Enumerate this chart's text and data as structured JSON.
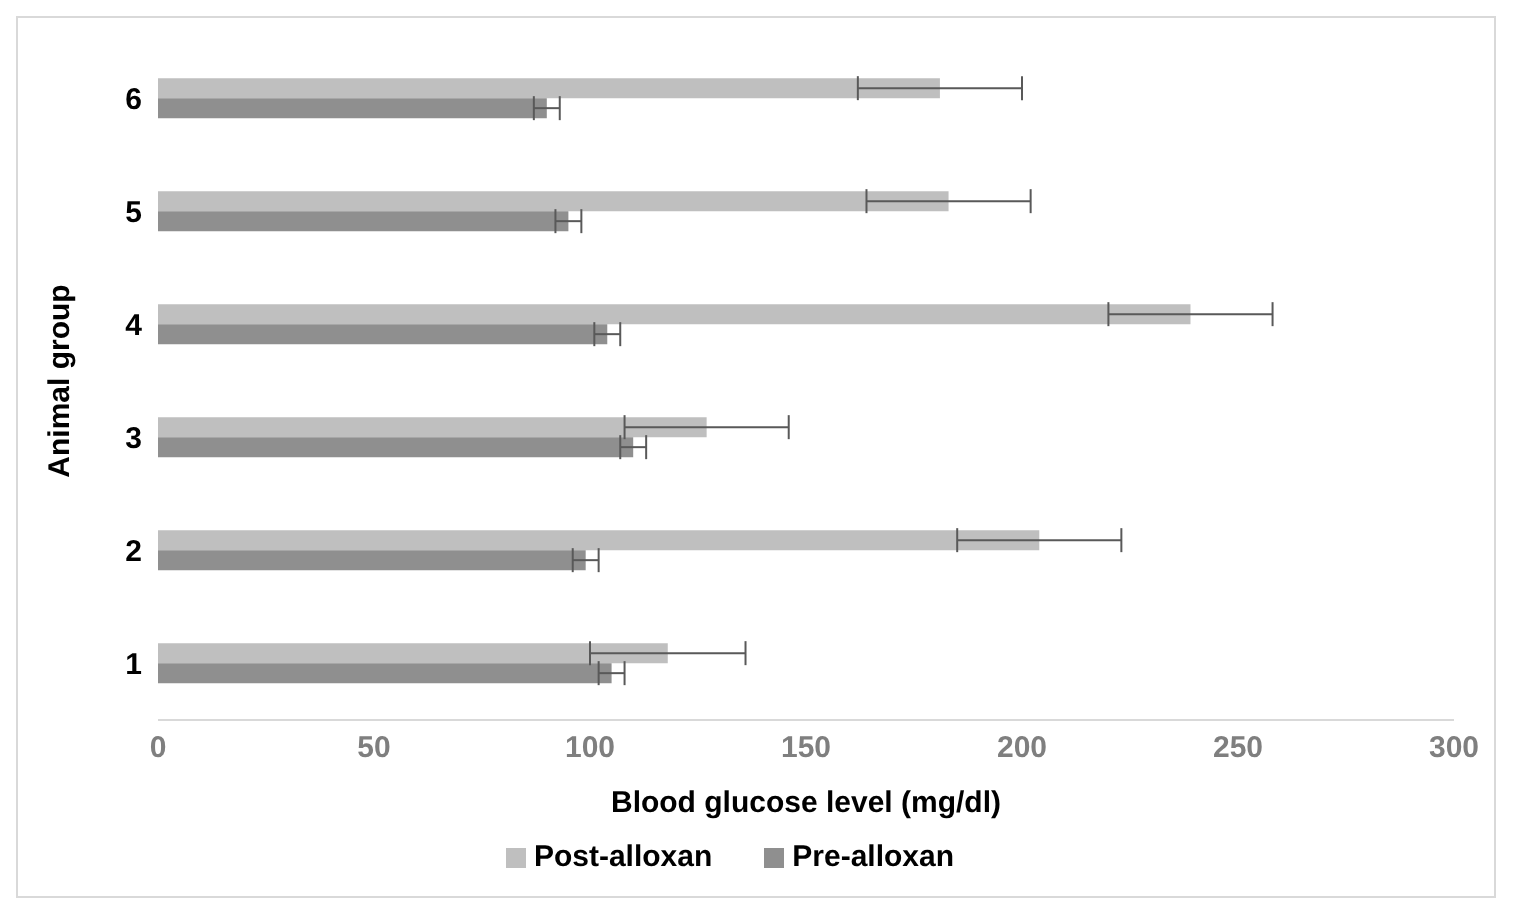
{
  "chart_data": {
    "type": "bar",
    "orientation": "horizontal",
    "xlabel": "Blood glucose level (mg/dl)",
    "ylabel": "Animal group",
    "categories": [
      "6",
      "5",
      "4",
      "3",
      "2",
      "1"
    ],
    "series": [
      {
        "name": "Post-alloxan",
        "color": "#bfbfbf",
        "values": [
          181,
          183,
          239,
          127,
          204,
          118
        ],
        "errors": [
          19,
          19,
          19,
          19,
          19,
          18
        ]
      },
      {
        "name": "Pre-alloxan",
        "color": "#8f8f8f",
        "values": [
          90,
          95,
          104,
          110,
          99,
          105
        ],
        "errors": [
          3,
          3,
          3,
          3,
          3,
          3
        ]
      }
    ],
    "xlim": [
      0,
      300
    ],
    "xticks": [
      0,
      50,
      100,
      150,
      200,
      250,
      300
    ],
    "grid": false,
    "legend": "bottom"
  }
}
